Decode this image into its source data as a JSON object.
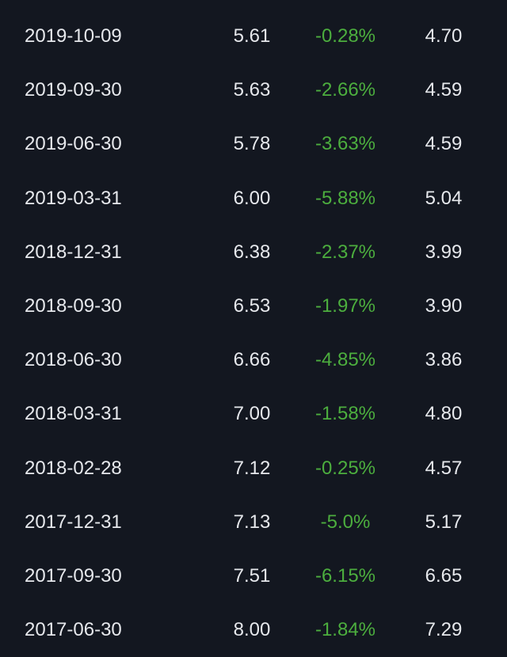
{
  "colors": {
    "background": "#131720",
    "text": "#e6e8ec",
    "negative_change": "#4cae3e"
  },
  "table": {
    "rows": [
      {
        "date": "2019-10-09",
        "value": "5.61",
        "change": "-0.28%",
        "value2": "4.70"
      },
      {
        "date": "2019-09-30",
        "value": "5.63",
        "change": "-2.66%",
        "value2": "4.59"
      },
      {
        "date": "2019-06-30",
        "value": "5.78",
        "change": "-3.63%",
        "value2": "4.59"
      },
      {
        "date": "2019-03-31",
        "value": "6.00",
        "change": "-5.88%",
        "value2": "5.04"
      },
      {
        "date": "2018-12-31",
        "value": "6.38",
        "change": "-2.37%",
        "value2": "3.99"
      },
      {
        "date": "2018-09-30",
        "value": "6.53",
        "change": "-1.97%",
        "value2": "3.90"
      },
      {
        "date": "2018-06-30",
        "value": "6.66",
        "change": "-4.85%",
        "value2": "3.86"
      },
      {
        "date": "2018-03-31",
        "value": "7.00",
        "change": "-1.58%",
        "value2": "4.80"
      },
      {
        "date": "2018-02-28",
        "value": "7.12",
        "change": "-0.25%",
        "value2": "4.57"
      },
      {
        "date": "2017-12-31",
        "value": "7.13",
        "change": "-5.0%",
        "value2": "5.17"
      },
      {
        "date": "2017-09-30",
        "value": "7.51",
        "change": "-6.15%",
        "value2": "6.65"
      },
      {
        "date": "2017-06-30",
        "value": "8.00",
        "change": "-1.84%",
        "value2": "7.29"
      }
    ]
  }
}
